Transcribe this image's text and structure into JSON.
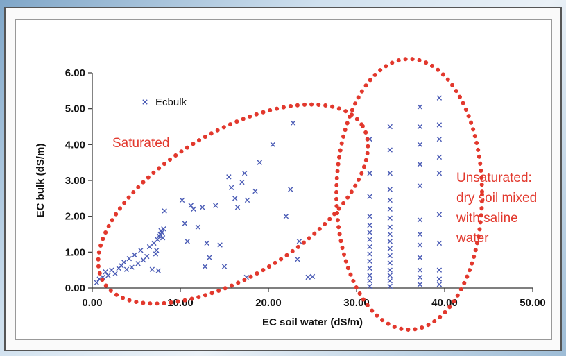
{
  "chart_data": {
    "type": "scatter",
    "xlabel": "EC soil water (dS/m)",
    "ylabel": "EC bulk (dS/m)",
    "xlim": [
      0,
      50
    ],
    "ylim": [
      0,
      6
    ],
    "x_ticks": [
      "0.00",
      "10.00",
      "20.00",
      "30.00",
      "40.00",
      "50.00"
    ],
    "y_ticks": [
      "0.00",
      "1.00",
      "2.00",
      "3.00",
      "4.00",
      "5.00",
      "6.00"
    ],
    "grid": false,
    "legend_position": "top-left",
    "marker_color": "#4a5bb5",
    "annotation_color": "#e2382d",
    "series": [
      {
        "name": "Ecbulk",
        "marker": "x",
        "points": [
          [
            0.5,
            0.15
          ],
          [
            0.8,
            0.25
          ],
          [
            1.2,
            0.3
          ],
          [
            1.5,
            0.45
          ],
          [
            1.8,
            0.35
          ],
          [
            2.2,
            0.5
          ],
          [
            2.6,
            0.4
          ],
          [
            3.0,
            0.55
          ],
          [
            3.3,
            0.62
          ],
          [
            3.6,
            0.72
          ],
          [
            3.9,
            0.52
          ],
          [
            4.2,
            0.82
          ],
          [
            4.5,
            0.58
          ],
          [
            4.8,
            0.92
          ],
          [
            5.2,
            0.68
          ],
          [
            5.5,
            1.05
          ],
          [
            5.8,
            0.78
          ],
          [
            6.2,
            0.88
          ],
          [
            6.5,
            1.15
          ],
          [
            6.8,
            0.52
          ],
          [
            7.0,
            1.25
          ],
          [
            7.2,
            0.95
          ],
          [
            7.4,
            1.35
          ],
          [
            7.6,
            1.45
          ],
          [
            7.7,
            1.5
          ],
          [
            7.8,
            1.6
          ],
          [
            7.9,
            1.55
          ],
          [
            8.0,
            1.4
          ],
          [
            8.1,
            1.65
          ],
          [
            8.2,
            2.15
          ],
          [
            7.5,
            0.48
          ],
          [
            7.3,
            1.05
          ],
          [
            10.2,
            2.45
          ],
          [
            10.5,
            1.8
          ],
          [
            10.8,
            1.3
          ],
          [
            11.2,
            2.3
          ],
          [
            11.5,
            2.2
          ],
          [
            12.0,
            1.7
          ],
          [
            12.5,
            2.25
          ],
          [
            12.8,
            0.6
          ],
          [
            13.0,
            1.25
          ],
          [
            13.3,
            0.85
          ],
          [
            14.0,
            2.3
          ],
          [
            14.5,
            1.2
          ],
          [
            15.0,
            0.6
          ],
          [
            15.5,
            3.1
          ],
          [
            15.8,
            2.8
          ],
          [
            16.2,
            2.5
          ],
          [
            16.5,
            2.25
          ],
          [
            17.0,
            2.95
          ],
          [
            17.3,
            3.2
          ],
          [
            17.6,
            2.45
          ],
          [
            17.5,
            0.3
          ],
          [
            18.5,
            2.7
          ],
          [
            19.0,
            3.5
          ],
          [
            20.5,
            4.0
          ],
          [
            22.0,
            2.0
          ],
          [
            22.5,
            2.75
          ],
          [
            22.8,
            4.6
          ],
          [
            23.5,
            1.3
          ],
          [
            23.3,
            0.8
          ],
          [
            24.5,
            0.3
          ],
          [
            25.0,
            0.32
          ],
          [
            31.5,
            0.05
          ],
          [
            31.5,
            0.2
          ],
          [
            31.5,
            0.35
          ],
          [
            31.5,
            0.55
          ],
          [
            31.5,
            0.75
          ],
          [
            31.5,
            0.95
          ],
          [
            31.5,
            1.15
          ],
          [
            31.5,
            1.35
          ],
          [
            31.5,
            1.55
          ],
          [
            31.5,
            1.75
          ],
          [
            31.5,
            2.0
          ],
          [
            31.5,
            2.55
          ],
          [
            31.5,
            3.2
          ],
          [
            31.5,
            4.15
          ],
          [
            33.8,
            0.05
          ],
          [
            33.8,
            0.2
          ],
          [
            33.8,
            0.35
          ],
          [
            33.8,
            0.5
          ],
          [
            33.8,
            0.7
          ],
          [
            33.8,
            0.9
          ],
          [
            33.8,
            1.1
          ],
          [
            33.8,
            1.3
          ],
          [
            33.8,
            1.5
          ],
          [
            33.8,
            1.7
          ],
          [
            33.8,
            1.95
          ],
          [
            33.8,
            2.2
          ],
          [
            33.8,
            2.45
          ],
          [
            33.8,
            2.75
          ],
          [
            33.8,
            3.2
          ],
          [
            33.8,
            3.85
          ],
          [
            33.8,
            4.5
          ],
          [
            37.2,
            0.1
          ],
          [
            37.2,
            0.3
          ],
          [
            37.2,
            0.5
          ],
          [
            37.2,
            0.85
          ],
          [
            37.2,
            1.2
          ],
          [
            37.2,
            1.5
          ],
          [
            37.2,
            1.9
          ],
          [
            37.2,
            2.85
          ],
          [
            37.2,
            3.45
          ],
          [
            37.2,
            4.0
          ],
          [
            37.2,
            4.5
          ],
          [
            37.2,
            5.05
          ],
          [
            39.4,
            0.1
          ],
          [
            39.4,
            0.25
          ],
          [
            39.4,
            0.5
          ],
          [
            39.4,
            1.25
          ],
          [
            39.4,
            2.05
          ],
          [
            39.4,
            3.2
          ],
          [
            39.4,
            3.65
          ],
          [
            39.4,
            4.15
          ],
          [
            39.4,
            4.55
          ],
          [
            39.4,
            5.3
          ]
        ]
      }
    ],
    "annotations": [
      "Saturated",
      "Unsaturated:",
      "dry soil mixed",
      "with saline",
      "water"
    ]
  }
}
